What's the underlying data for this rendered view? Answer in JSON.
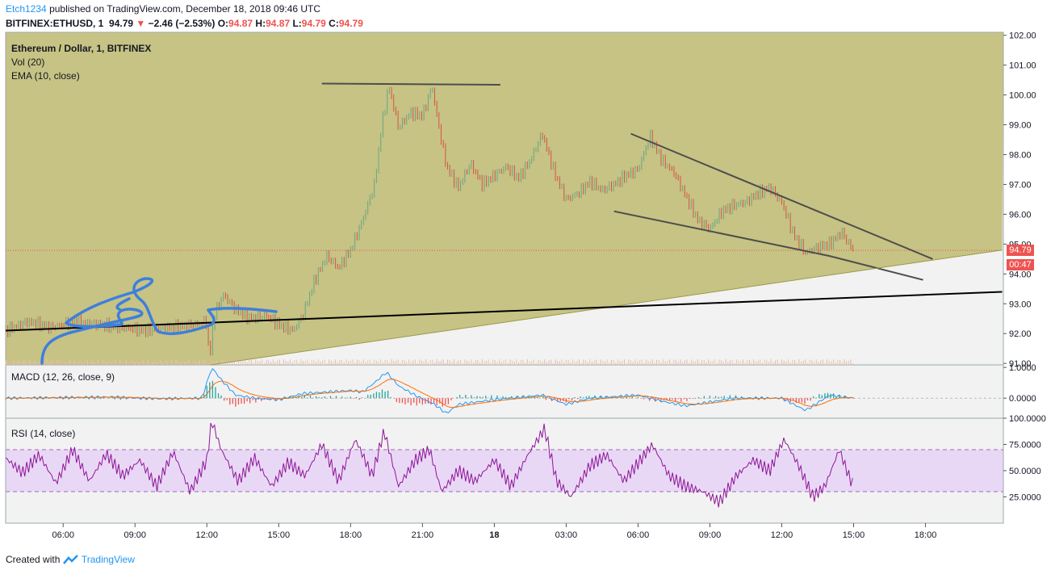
{
  "header": {
    "publisher": "Etch1234",
    "published_text": "published on TradingView.com, December 18, 2018 09:46 UTC",
    "symbol": "BITFINEX:ETHUSD, 1",
    "last": "94.79",
    "change": "−2.46 (−2.53%)",
    "o_label": "O:",
    "o": "94.87",
    "h_label": "H:",
    "h": "94.87",
    "l_label": "L:",
    "l": "94.79",
    "c_label": "C:",
    "c": "94.79"
  },
  "panes": {
    "main": {
      "title": "Ethereum / Dollar, 1, BITFINEX",
      "vol": "Vol (20)",
      "ema": "EMA (10, close)"
    },
    "macd": {
      "title": "MACD (12, 26, close, 9)"
    },
    "rsi": {
      "title": "RSI (14, close)"
    }
  },
  "price_tag": {
    "price": "94.79",
    "countdown": "00:47"
  },
  "footer": {
    "created": "Created with",
    "brand": "TradingView"
  },
  "colors": {
    "pane_fill": "#c6c384",
    "up": "#6ba583",
    "down": "#d75442",
    "rsi_line": "#8e1599",
    "rsi_band": "#e9d8f5",
    "trend_blue": "#3f7fdc",
    "price_tag": "#ef5350"
  },
  "chart_data": [
    {
      "type": "candlestick",
      "title": "Ethereum / Dollar, 1, BITFINEX",
      "x_ticks": [
        "06:00",
        "09:00",
        "12:00",
        "15:00",
        "18:00",
        "21:00",
        "18",
        "03:00",
        "06:00",
        "09:00",
        "12:00",
        "15:00",
        "18:00"
      ],
      "x_range_hours": [
        3.6,
        45.25
      ],
      "y_ticks": [
        "102.00",
        "101.00",
        "100.00",
        "99.00",
        "98.00",
        "97.00",
        "96.00",
        "95.00",
        "94.00",
        "93.00",
        "92.00",
        "91.00"
      ],
      "ylim": [
        90.95,
        102.1
      ],
      "last_price": 94.79,
      "close_path": [
        [
          3.6,
          92.1
        ],
        [
          4.5,
          92.4
        ],
        [
          5.5,
          92.2
        ],
        [
          6.5,
          92.4
        ],
        [
          7.5,
          92.3
        ],
        [
          8.5,
          92.2
        ],
        [
          9.5,
          92.1
        ],
        [
          10.5,
          92.2
        ],
        [
          11.5,
          92.3
        ],
        [
          12.0,
          92.4
        ],
        [
          12.1,
          91.0
        ],
        [
          12.3,
          92.6
        ],
        [
          12.7,
          93.3
        ],
        [
          13.2,
          92.8
        ],
        [
          13.8,
          92.5
        ],
        [
          14.5,
          92.6
        ],
        [
          15.0,
          92.3
        ],
        [
          15.6,
          92.1
        ],
        [
          16.0,
          92.6
        ],
        [
          16.5,
          93.8
        ],
        [
          17.0,
          94.6
        ],
        [
          17.5,
          94.2
        ],
        [
          18.0,
          94.8
        ],
        [
          18.5,
          95.8
        ],
        [
          19.0,
          97.0
        ],
        [
          19.3,
          99.0
        ],
        [
          19.6,
          100.3
        ],
        [
          20.0,
          98.9
        ],
        [
          20.5,
          99.4
        ],
        [
          21.0,
          99.3
        ],
        [
          21.4,
          100.3
        ],
        [
          21.6,
          99.3
        ],
        [
          22.0,
          97.6
        ],
        [
          22.5,
          96.9
        ],
        [
          23.0,
          97.7
        ],
        [
          23.5,
          97.0
        ],
        [
          24.0,
          97.3
        ],
        [
          24.5,
          97.6
        ],
        [
          25.0,
          97.2
        ],
        [
          25.5,
          97.8
        ],
        [
          26.0,
          98.7
        ],
        [
          26.5,
          97.4
        ],
        [
          27.0,
          96.5
        ],
        [
          27.5,
          96.7
        ],
        [
          28.0,
          97.1
        ],
        [
          28.5,
          96.8
        ],
        [
          29.0,
          97.0
        ],
        [
          29.5,
          97.3
        ],
        [
          30.0,
          97.5
        ],
        [
          30.5,
          98.6
        ],
        [
          31.0,
          97.8
        ],
        [
          31.5,
          97.4
        ],
        [
          32.0,
          96.6
        ],
        [
          32.5,
          95.8
        ],
        [
          33.0,
          95.5
        ],
        [
          33.5,
          96.1
        ],
        [
          34.0,
          96.3
        ],
        [
          34.5,
          96.4
        ],
        [
          35.0,
          96.7
        ],
        [
          35.5,
          96.9
        ],
        [
          36.0,
          96.4
        ],
        [
          36.5,
          95.3
        ],
        [
          37.0,
          94.7
        ],
        [
          37.5,
          94.9
        ],
        [
          38.0,
          95.0
        ],
        [
          38.5,
          95.4
        ],
        [
          38.8,
          95.0
        ],
        [
          39.0,
          94.8
        ]
      ],
      "trendlines": [
        {
          "points": [
            [
              16.8,
              100.38
            ],
            [
              24.25,
              100.34
            ]
          ]
        },
        {
          "points": [
            [
              29.0,
              96.1
            ],
            [
              38.0,
              94.6
            ],
            [
              41.9,
              93.8
            ]
          ]
        },
        {
          "points": [
            [
              29.7,
              98.7
            ],
            [
              42.3,
              94.5
            ]
          ]
        },
        {
          "points": [
            [
              12.15,
              90.95
            ],
            [
              45.2,
              94.8
            ]
          ]
        },
        {
          "points": [
            [
              3.6,
              92.1
            ],
            [
              45.2,
              93.4
            ]
          ]
        }
      ]
    },
    {
      "type": "line",
      "title": "MACD (12, 26, close, 9)",
      "y_ticks": [
        "1.0000",
        "0.0000"
      ],
      "ylim": [
        -0.65,
        1.08
      ],
      "macd_path": [
        [
          3.6,
          0.0
        ],
        [
          6.0,
          0.02
        ],
        [
          8.0,
          0.04
        ],
        [
          10.0,
          -0.02
        ],
        [
          11.8,
          0.0
        ],
        [
          12.2,
          1.0
        ],
        [
          12.6,
          0.6
        ],
        [
          13.2,
          0.1
        ],
        [
          14.0,
          0.0
        ],
        [
          15.0,
          -0.05
        ],
        [
          16.0,
          0.15
        ],
        [
          17.0,
          0.2
        ],
        [
          18.0,
          0.25
        ],
        [
          18.5,
          0.2
        ],
        [
          19.0,
          0.5
        ],
        [
          19.5,
          0.85
        ],
        [
          20.0,
          0.4
        ],
        [
          20.8,
          0.05
        ],
        [
          21.5,
          -0.2
        ],
        [
          22.0,
          -0.5
        ],
        [
          22.5,
          -0.2
        ],
        [
          24.0,
          -0.05
        ],
        [
          26.0,
          0.1
        ],
        [
          27.0,
          -0.2
        ],
        [
          28.0,
          0.0
        ],
        [
          30.0,
          0.1
        ],
        [
          31.0,
          -0.1
        ],
        [
          32.0,
          -0.25
        ],
        [
          34.0,
          0.0
        ],
        [
          36.0,
          0.0
        ],
        [
          37.0,
          -0.4
        ],
        [
          38.0,
          0.1
        ],
        [
          39.0,
          0.0
        ]
      ]
    },
    {
      "type": "line",
      "title": "RSI (14, close)",
      "y_ticks": [
        "100.0000",
        "75.0000",
        "50.0000",
        "25.0000"
      ],
      "ylim": [
        0,
        100
      ],
      "band": [
        30,
        70
      ],
      "rsi_path": [
        [
          3.6,
          62
        ],
        [
          4.3,
          48
        ],
        [
          5.0,
          65
        ],
        [
          5.7,
          38
        ],
        [
          6.4,
          70
        ],
        [
          7.1,
          40
        ],
        [
          7.8,
          66
        ],
        [
          8.5,
          45
        ],
        [
          9.2,
          60
        ],
        [
          9.9,
          35
        ],
        [
          10.6,
          68
        ],
        [
          11.3,
          30
        ],
        [
          12.0,
          60
        ],
        [
          12.2,
          98
        ],
        [
          12.6,
          70
        ],
        [
          13.3,
          40
        ],
        [
          14.0,
          62
        ],
        [
          14.7,
          35
        ],
        [
          15.4,
          58
        ],
        [
          16.1,
          45
        ],
        [
          16.8,
          75
        ],
        [
          17.5,
          40
        ],
        [
          18.2,
          80
        ],
        [
          18.9,
          45
        ],
        [
          19.4,
          88
        ],
        [
          20.0,
          35
        ],
        [
          20.7,
          60
        ],
        [
          21.3,
          70
        ],
        [
          21.8,
          30
        ],
        [
          22.5,
          50
        ],
        [
          23.2,
          40
        ],
        [
          24.0,
          60
        ],
        [
          24.7,
          35
        ],
        [
          25.4,
          65
        ],
        [
          26.1,
          90
        ],
        [
          26.6,
          40
        ],
        [
          27.2,
          25
        ],
        [
          28.0,
          55
        ],
        [
          28.7,
          65
        ],
        [
          29.4,
          40
        ],
        [
          30.1,
          60
        ],
        [
          30.6,
          75
        ],
        [
          31.3,
          45
        ],
        [
          32.0,
          35
        ],
        [
          32.7,
          30
        ],
        [
          33.4,
          20
        ],
        [
          34.1,
          45
        ],
        [
          34.8,
          60
        ],
        [
          35.5,
          50
        ],
        [
          36.1,
          80
        ],
        [
          36.7,
          55
        ],
        [
          37.3,
          25
        ],
        [
          37.8,
          35
        ],
        [
          38.4,
          70
        ],
        [
          38.8,
          45
        ],
        [
          39.0,
          35
        ]
      ]
    }
  ]
}
